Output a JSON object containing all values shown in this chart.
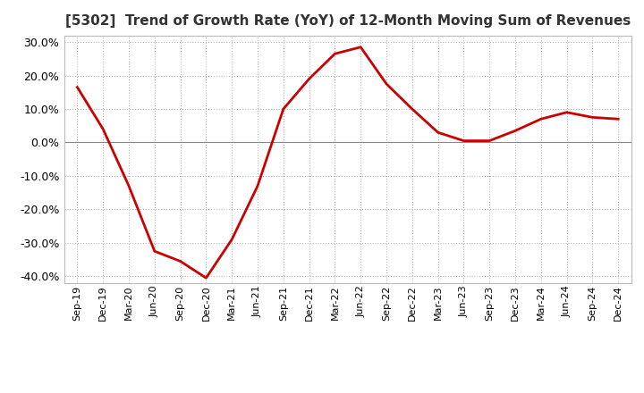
{
  "title": "[5302]  Trend of Growth Rate (YoY) of 12-Month Moving Sum of Revenues",
  "line_color": "#cc0000",
  "background_color": "#ffffff",
  "grid_color": "#aaaaaa",
  "zero_line_color": "#888888",
  "ylim": [
    -0.42,
    0.32
  ],
  "yticks": [
    -0.4,
    -0.3,
    -0.2,
    -0.1,
    0.0,
    0.1,
    0.2,
    0.3
  ],
  "x_labels": [
    "Sep-19",
    "Dec-19",
    "Mar-20",
    "Jun-20",
    "Sep-20",
    "Dec-20",
    "Mar-21",
    "Jun-21",
    "Sep-21",
    "Dec-21",
    "Mar-22",
    "Jun-22",
    "Sep-22",
    "Dec-22",
    "Mar-23",
    "Jun-23",
    "Sep-23",
    "Dec-23",
    "Mar-24",
    "Jun-24",
    "Sep-24",
    "Dec-24"
  ],
  "data_values": [
    0.165,
    0.04,
    -0.13,
    -0.325,
    -0.355,
    -0.405,
    -0.29,
    -0.13,
    0.1,
    0.19,
    0.265,
    0.285,
    0.175,
    0.1,
    0.03,
    0.005,
    0.005,
    0.035,
    0.07,
    0.09,
    0.075,
    0.07
  ],
  "title_fontsize": 11,
  "tick_fontsize": 9,
  "xtick_fontsize": 8,
  "line_width": 2.0
}
